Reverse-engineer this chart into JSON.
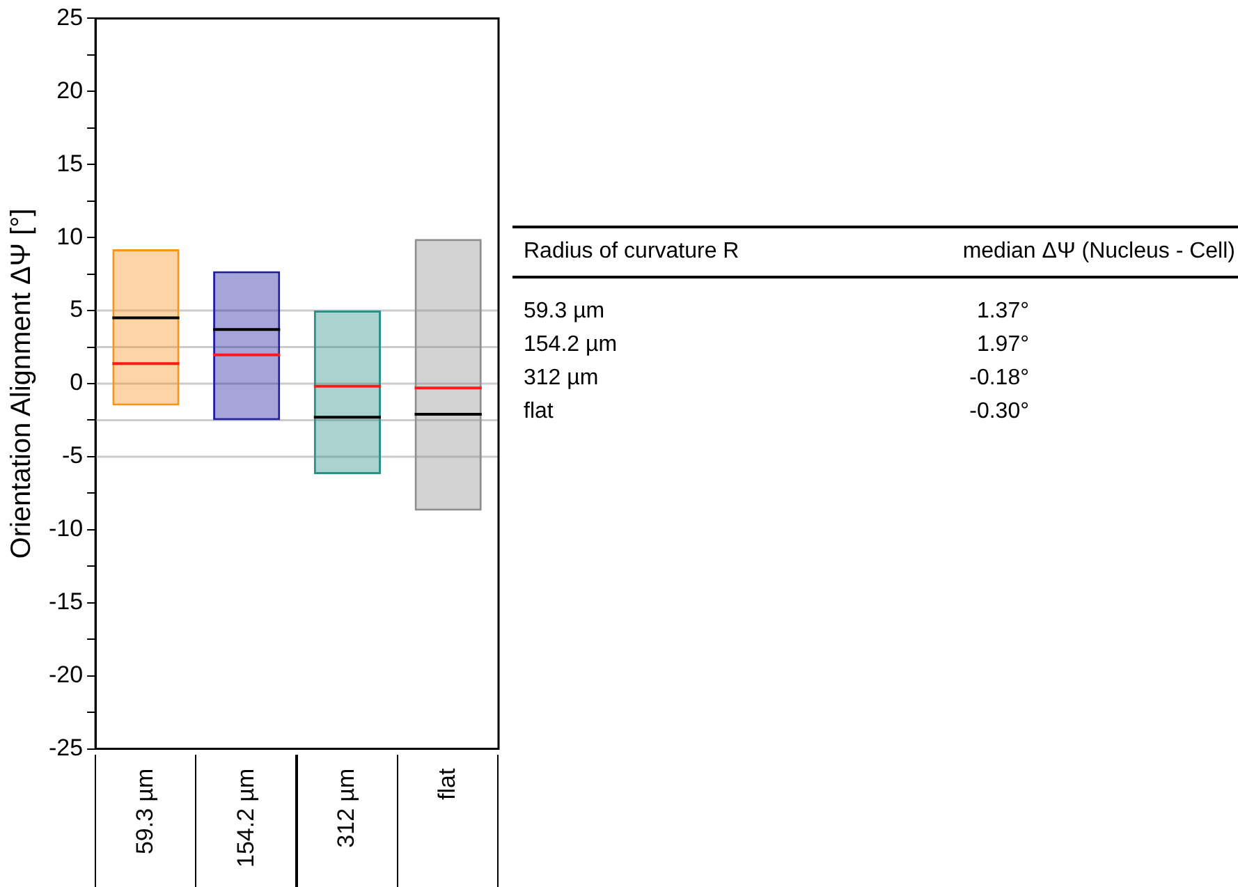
{
  "chart_data": {
    "type": "box",
    "ylabel": "Orientation Alignment ΔΨ [°]",
    "categories": [
      "59.3 µm",
      "154.2 µm",
      "312 µm",
      "flat"
    ],
    "colors": [
      "#f7941d",
      "#1f1f9f",
      "#2a9088",
      "#8f8f8f"
    ],
    "boxes": [
      {
        "low": -1.5,
        "q1": -1.5,
        "median": 1.37,
        "q3": 9.2,
        "high": 9.2,
        "mean": 4.5
      },
      {
        "low": -2.5,
        "q1": -2.5,
        "median": 1.97,
        "q3": 7.7,
        "high": 7.7,
        "mean": 3.7
      },
      {
        "low": -6.2,
        "q1": -6.2,
        "median": -0.18,
        "q3": 5.0,
        "high": 5.0,
        "mean": -2.3
      },
      {
        "low": -8.7,
        "q1": -8.7,
        "median": -0.3,
        "q3": 9.9,
        "high": 9.9,
        "mean": -2.1
      }
    ],
    "value_labels": [
      "1.37°",
      "1.97°",
      "-0.18°",
      "-0.30°"
    ],
    "annotations": [
      "Radius of curvature R",
      "median ΔΨ (Nucleus - Cell)"
    ],
    "ylim": [
      -25,
      25
    ],
    "yticks": [
      -25,
      {
        "value": -22.5,
        "label": null
      },
      -20,
      {
        "value": -17.5,
        "label": null
      },
      -15,
      {
        "value": -12.5,
        "label": null
      },
      -10,
      {
        "value": -7.5,
        "label": null
      },
      -5,
      {
        "value": -2.5,
        "label": null
      },
      0,
      {
        "value": 2.5,
        "label": null
      },
      5,
      {
        "value": 7.5,
        "label": null
      },
      10,
      {
        "value": 12.5,
        "label": null
      },
      15,
      {
        "value": 17.5,
        "label": null
      },
      20,
      {
        "value": 22.5,
        "label": null
      },
      25
    ],
    "ref_lines": [
      {
        "axis": "y",
        "value": 5,
        "color": "#cccccc"
      },
      {
        "axis": "y",
        "value": 2.5,
        "color": "#cccccc"
      },
      {
        "axis": "y",
        "value": 0,
        "color": "#cccccc"
      },
      {
        "axis": "y",
        "value": -2.5,
        "color": "#cccccc"
      },
      {
        "axis": "y",
        "value": -5,
        "color": "#cccccc"
      }
    ],
    "grid": false,
    "legend": false
  }
}
